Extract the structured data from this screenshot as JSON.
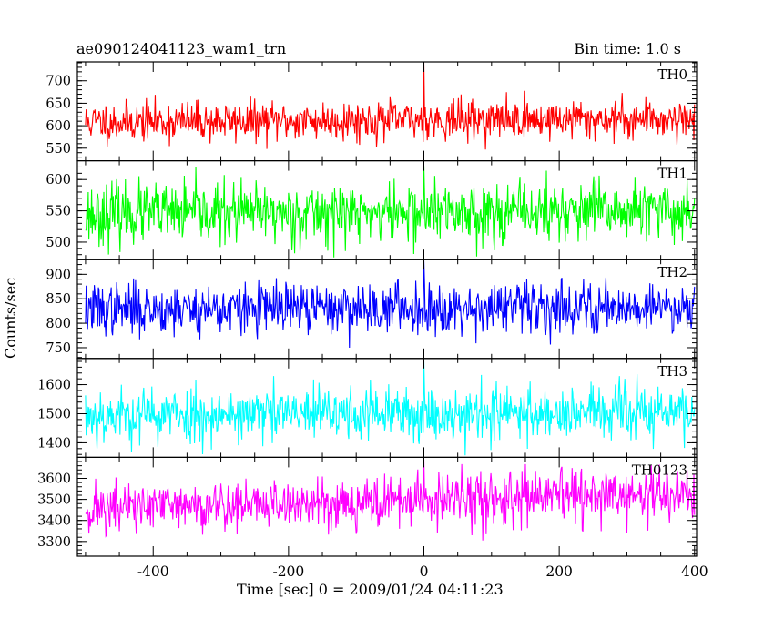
{
  "title": "ae090124041123_wam1_trn",
  "bin_time_label": "Bin time: 1.0 s",
  "chart_data": {
    "type": "line",
    "xlabel": "Time [sec] 0 = 2009/01/24 04:11:23",
    "ylabel": "Counts/sec",
    "xlim": [
      -512,
      403
    ],
    "xticks": [
      -400,
      -200,
      0,
      200,
      400
    ],
    "x_start": -500,
    "x_end": 400,
    "x_step": 1,
    "grid": false,
    "panels": [
      {
        "name": "TH0",
        "color": "#ff0000",
        "ylim": [
          522,
          742
        ],
        "yticks": [
          550,
          600,
          650,
          700
        ],
        "mean": 608,
        "spread": 22,
        "trend": 8,
        "seed": 11,
        "peak": 740
      },
      {
        "name": "TH1",
        "color": "#00ff00",
        "ylim": [
          472,
          630
        ],
        "yticks": [
          500,
          550,
          600
        ],
        "mean": 545,
        "spread": 24,
        "trend": 4,
        "seed": 23,
        "peak": 622
      },
      {
        "name": "TH2",
        "color": "#0000ff",
        "ylim": [
          728,
          930
        ],
        "yticks": [
          750,
          800,
          850,
          900
        ],
        "mean": 828,
        "spread": 26,
        "trend": 6,
        "seed": 37,
        "peak": 928
      },
      {
        "name": "TH3",
        "color": "#00ffff",
        "ylim": [
          1350,
          1690
        ],
        "yticks": [
          1400,
          1500,
          1600
        ],
        "mean": 1495,
        "spread": 48,
        "trend": 10,
        "seed": 53,
        "peak": 1680
      },
      {
        "name": "TH0123",
        "color": "#ff00ff",
        "ylim": [
          3230,
          3700
        ],
        "yticks": [
          3300,
          3400,
          3500,
          3600
        ],
        "mean": 3455,
        "spread": 62,
        "trend": 70,
        "seed": 71,
        "peak": 3690
      }
    ]
  }
}
